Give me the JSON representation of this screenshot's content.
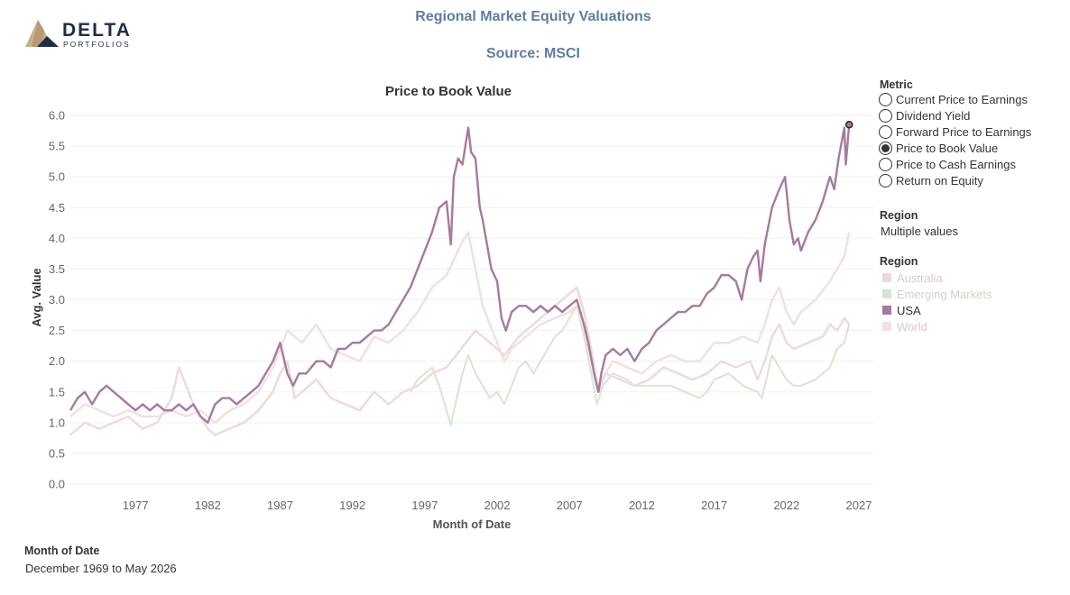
{
  "logo": {
    "name": "DELTA",
    "sub": "PORTFOLIOS"
  },
  "header": {
    "title": "Regional Market Equity Valuations",
    "subtitle": "Source: MSCI"
  },
  "metric_panel": {
    "title": "Metric",
    "options": [
      {
        "label": "Current Price to Earnings",
        "selected": false
      },
      {
        "label": "Dividend Yield",
        "selected": false
      },
      {
        "label": "Forward Price to Earnings",
        "selected": false
      },
      {
        "label": "Price to Book Value",
        "selected": true
      },
      {
        "label": "Price to Cash Earnings",
        "selected": false
      },
      {
        "label": "Return on Equity",
        "selected": false
      }
    ]
  },
  "region_filter": {
    "title": "Region",
    "value": "Multiple values"
  },
  "region_legend": {
    "title": "Region",
    "items": [
      {
        "label": "Australia",
        "color": "#efdada",
        "label_color": "#d8c8c8"
      },
      {
        "label": "Emerging Markets",
        "color": "#d6e6d1",
        "label_color": "#c8d6c4"
      },
      {
        "label": "USA",
        "color": "#a67a9d",
        "label_color": "#333333"
      },
      {
        "label": "World",
        "color": "#f3e0e0",
        "label_color": "#d8c8c8"
      }
    ]
  },
  "footer": {
    "title": "Month of Date",
    "value": "December 1969 to May 2026"
  },
  "chart_data": {
    "type": "line",
    "title": "Price to Book Value",
    "xlabel": "Month of Date",
    "ylabel": "Avg. Value",
    "xlim": [
      1972.5,
      2028
    ],
    "ylim": [
      0,
      6
    ],
    "xticks": [
      1977,
      1982,
      1987,
      1992,
      1997,
      2002,
      2007,
      2012,
      2017,
      2022,
      2027
    ],
    "yticks": [
      "0.0",
      "0.5",
      "1.0",
      "1.5",
      "2.0",
      "2.5",
      "3.0",
      "3.5",
      "4.0",
      "4.5",
      "5.0",
      "5.5",
      "6.0"
    ],
    "grid": "horizontal",
    "highlight_point": {
      "x": 2026.33,
      "y": 5.85
    },
    "series": [
      {
        "name": "Emerging Markets",
        "color": "#d6e6d1",
        "width": 2,
        "x": [
          1996,
          1996.5,
          1997,
          1997.5,
          1998,
          1998.5,
          1998.8,
          1999.2,
          1999.6,
          2000,
          2000.5,
          2001,
          2001.5,
          2002,
          2002.5,
          2003,
          2003.5,
          2004,
          2004.5,
          2005,
          2005.5,
          2006,
          2006.5,
          2007,
          2007.5,
          2008,
          2008.5,
          2008.9,
          2009.3,
          2010,
          2011,
          2011.5,
          2012,
          2013,
          2014,
          2015,
          2016,
          2016.5,
          2017,
          2018,
          2019,
          2020,
          2020.3,
          2021,
          2021.5,
          2022,
          2022.5,
          2023,
          2024,
          2025,
          2025.5,
          2026,
          2026.33
        ],
        "y": [
          1.5,
          1.7,
          1.8,
          1.9,
          1.6,
          1.2,
          0.95,
          1.4,
          1.8,
          2.1,
          1.8,
          1.6,
          1.4,
          1.5,
          1.3,
          1.6,
          1.9,
          2.0,
          1.8,
          2.0,
          2.2,
          2.4,
          2.5,
          2.7,
          2.9,
          2.4,
          1.8,
          1.3,
          1.6,
          1.8,
          1.7,
          1.6,
          1.6,
          1.6,
          1.6,
          1.5,
          1.4,
          1.5,
          1.7,
          1.8,
          1.6,
          1.5,
          1.4,
          2.1,
          1.9,
          1.7,
          1.6,
          1.6,
          1.7,
          1.9,
          2.2,
          2.3,
          2.6
        ]
      },
      {
        "name": "World",
        "color": "#f3e0e0",
        "width": 2.5,
        "x": [
          1972.5,
          1973.5,
          1974.5,
          1975.5,
          1976.5,
          1977.5,
          1978.5,
          1979.5,
          1980.5,
          1981.5,
          1982.5,
          1983.5,
          1984.5,
          1985.5,
          1986.5,
          1987,
          1987.5,
          1988.5,
          1989.5,
          1990.5,
          1991.5,
          1992.5,
          1993.5,
          1994.5,
          1995.5,
          1996.5,
          1997.5,
          1998.5,
          1999.5,
          2000,
          2000.5,
          2001,
          2001.5,
          2002,
          2002.5,
          2003,
          2004,
          2005,
          2006,
          2007,
          2007.5,
          2008,
          2008.5,
          2009,
          2009.5,
          2010,
          2011,
          2012,
          2013,
          2014,
          2015,
          2016,
          2017,
          2018,
          2019,
          2020,
          2020.5,
          2021,
          2021.5,
          2022,
          2022.5,
          2023,
          2024,
          2025,
          2025.5,
          2026,
          2026.33
        ],
        "y": [
          1.1,
          1.3,
          1.2,
          1.1,
          1.2,
          1.1,
          1.1,
          1.2,
          1.1,
          1.2,
          1.0,
          1.2,
          1.3,
          1.5,
          1.9,
          2.2,
          2.5,
          2.3,
          2.6,
          2.2,
          2.1,
          2.0,
          2.4,
          2.3,
          2.5,
          2.8,
          3.2,
          3.4,
          3.9,
          4.1,
          3.5,
          2.9,
          2.6,
          2.3,
          2.0,
          2.2,
          2.4,
          2.6,
          2.7,
          2.8,
          2.9,
          2.5,
          2.0,
          1.6,
          1.8,
          2.0,
          1.9,
          1.8,
          2.0,
          2.1,
          2.0,
          2.0,
          2.3,
          2.3,
          2.4,
          2.3,
          2.6,
          3.0,
          3.2,
          2.8,
          2.6,
          2.8,
          3.0,
          3.3,
          3.5,
          3.7,
          4.1
        ]
      },
      {
        "name": "Australia",
        "color": "#efdada",
        "width": 2.5,
        "x": [
          1972.5,
          1973.5,
          1974.5,
          1975.5,
          1976.5,
          1977.5,
          1978.5,
          1979.5,
          1980,
          1980.5,
          1981,
          1981.5,
          1982,
          1982.5,
          1983.5,
          1984.5,
          1985.5,
          1986.5,
          1987,
          1987.5,
          1988,
          1988.5,
          1989.5,
          1990.5,
          1991.5,
          1992.5,
          1993.5,
          1994.5,
          1995.5,
          1996.5,
          1997.5,
          1998.5,
          1999.5,
          2000.5,
          2001.5,
          2002.5,
          2003.5,
          2004.5,
          2005.5,
          2006.5,
          2007,
          2007.5,
          2008,
          2008.5,
          2009,
          2009.5,
          2010.5,
          2011.5,
          2012.5,
          2013.5,
          2014.5,
          2015.5,
          2016.5,
          2017.5,
          2018.5,
          2019.5,
          2020,
          2020.5,
          2021,
          2021.5,
          2022,
          2022.5,
          2023.5,
          2024.5,
          2025,
          2025.5,
          2026,
          2026.33
        ],
        "y": [
          0.8,
          1.0,
          0.9,
          1.0,
          1.1,
          0.9,
          1.0,
          1.4,
          1.9,
          1.6,
          1.3,
          1.1,
          0.9,
          0.8,
          0.9,
          1.0,
          1.2,
          1.5,
          1.8,
          2.0,
          1.4,
          1.5,
          1.7,
          1.4,
          1.3,
          1.2,
          1.5,
          1.3,
          1.5,
          1.6,
          1.8,
          1.9,
          2.2,
          2.5,
          2.3,
          2.1,
          2.4,
          2.6,
          2.8,
          3.0,
          3.1,
          3.2,
          2.8,
          2.2,
          1.5,
          1.8,
          1.7,
          1.6,
          1.7,
          1.9,
          1.8,
          1.7,
          1.8,
          2.0,
          1.9,
          2.0,
          1.7,
          2.0,
          2.4,
          2.6,
          2.3,
          2.2,
          2.3,
          2.4,
          2.6,
          2.5,
          2.7,
          2.6
        ]
      },
      {
        "name": "USA",
        "color": "#a67a9d",
        "width": 2.4,
        "x": [
          1972.5,
          1973,
          1973.5,
          1974,
          1974.5,
          1975,
          1975.5,
          1976,
          1976.5,
          1977,
          1977.5,
          1978,
          1978.5,
          1979,
          1979.5,
          1980,
          1980.5,
          1981,
          1981.5,
          1982,
          1982.5,
          1983,
          1983.5,
          1984,
          1984.5,
          1985,
          1985.5,
          1986,
          1986.5,
          1987,
          1987.5,
          1987.9,
          1988.3,
          1988.8,
          1989.5,
          1990,
          1990.5,
          1991,
          1991.5,
          1992,
          1992.5,
          1993,
          1993.5,
          1994,
          1994.5,
          1995,
          1995.5,
          1996,
          1996.5,
          1997,
          1997.5,
          1998,
          1998.5,
          1998.8,
          1999,
          1999.3,
          1999.6,
          2000,
          2000.2,
          2000.5,
          2000.8,
          2001,
          2001.3,
          2001.6,
          2002,
          2002.3,
          2002.6,
          2003,
          2003.5,
          2004,
          2004.5,
          2005,
          2005.5,
          2006,
          2006.5,
          2007,
          2007.5,
          2008,
          2008.3,
          2008.7,
          2009,
          2009.2,
          2009.5,
          2010,
          2010.5,
          2011,
          2011.5,
          2012,
          2012.5,
          2013,
          2013.5,
          2014,
          2014.5,
          2015,
          2015.5,
          2016,
          2016.5,
          2017,
          2017.5,
          2018,
          2018.5,
          2018.9,
          2019.3,
          2019.7,
          2020,
          2020.2,
          2020.5,
          2021,
          2021.5,
          2021.9,
          2022.2,
          2022.5,
          2022.8,
          2023,
          2023.5,
          2024,
          2024.5,
          2025,
          2025.3,
          2025.6,
          2026,
          2026.1,
          2026.33
        ],
        "y": [
          1.2,
          1.4,
          1.5,
          1.3,
          1.5,
          1.6,
          1.5,
          1.4,
          1.3,
          1.2,
          1.3,
          1.2,
          1.3,
          1.2,
          1.2,
          1.3,
          1.2,
          1.3,
          1.1,
          1.0,
          1.3,
          1.4,
          1.4,
          1.3,
          1.4,
          1.5,
          1.6,
          1.8,
          2.0,
          2.3,
          1.8,
          1.6,
          1.8,
          1.8,
          2.0,
          2.0,
          1.9,
          2.2,
          2.2,
          2.3,
          2.3,
          2.4,
          2.5,
          2.5,
          2.6,
          2.8,
          3.0,
          3.2,
          3.5,
          3.8,
          4.1,
          4.5,
          4.6,
          3.9,
          5.0,
          5.3,
          5.2,
          5.8,
          5.4,
          5.3,
          4.5,
          4.3,
          3.9,
          3.5,
          3.3,
          2.7,
          2.5,
          2.8,
          2.9,
          2.9,
          2.8,
          2.9,
          2.8,
          2.9,
          2.8,
          2.9,
          3.0,
          2.6,
          2.3,
          1.8,
          1.5,
          1.8,
          2.1,
          2.2,
          2.1,
          2.2,
          2.0,
          2.2,
          2.3,
          2.5,
          2.6,
          2.7,
          2.8,
          2.8,
          2.9,
          2.9,
          3.1,
          3.2,
          3.4,
          3.4,
          3.3,
          3.0,
          3.5,
          3.7,
          3.8,
          3.3,
          3.9,
          4.5,
          4.8,
          5.0,
          4.3,
          3.9,
          4.0,
          3.8,
          4.1,
          4.3,
          4.6,
          5.0,
          4.8,
          5.3,
          5.8,
          5.2,
          5.85
        ]
      }
    ]
  }
}
